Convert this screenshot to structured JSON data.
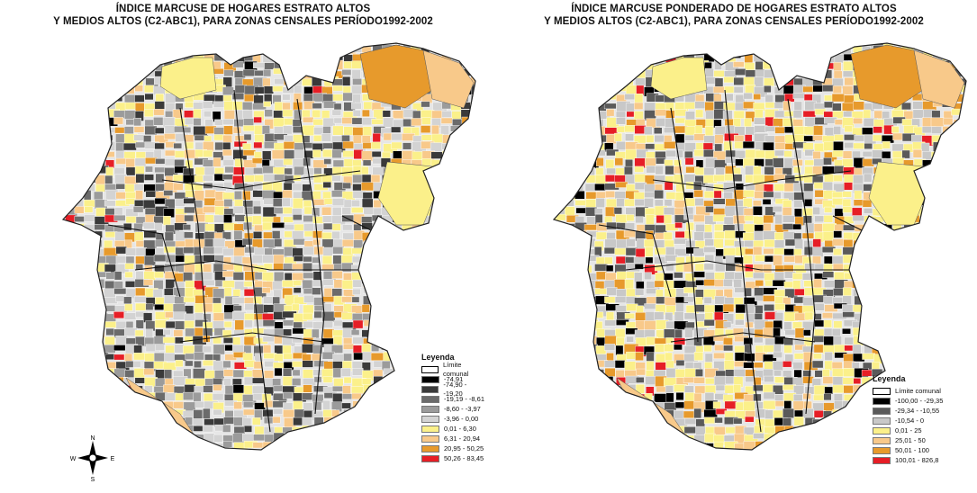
{
  "maps": [
    {
      "title_line1": "ÍNDICE MARCUSE DE HOGARES ESTRATO ALTOS",
      "title_line2": "Y MEDIOS ALTOS (C2-ABC1), PARA ZONAS CENSALES PERÍODO1992-2002",
      "legend": {
        "title": "Leyenda",
        "limit_label": "Límite comunal",
        "classes": [
          {
            "label": "-74,91",
            "color": "#000000"
          },
          {
            "label": "-74,90 - -19,20",
            "color": "#3a3a3a"
          },
          {
            "label": "-19,19 - -8,61",
            "color": "#6b6b6b"
          },
          {
            "label": "-8,60 - -3,97",
            "color": "#9b9b9b"
          },
          {
            "label": "-3,96 - 0,00",
            "color": "#d3d3d3"
          },
          {
            "label": "0,01 - 6,30",
            "color": "#fbf08a"
          },
          {
            "label": "6,31 - 20,94",
            "color": "#f8c98a"
          },
          {
            "label": "20,95 - 50,25",
            "color": "#e79a2c"
          },
          {
            "label": "50,26 - 83,45",
            "color": "#e61e26"
          }
        ]
      }
    },
    {
      "title_line1": "ÍNDICE MARCUSE PONDERADO DE HOGARES ESTRATO ALTOS",
      "title_line2": "Y MEDIOS ALTOS (C2-ABC1), PARA ZONAS CENSALES PERÍODO1992-2002",
      "legend": {
        "title": "Leyenda",
        "limit_label": "Límite comunal",
        "classes": [
          {
            "label": "-100,00 - -29,35",
            "color": "#000000"
          },
          {
            "label": "-29,34 - -10,55",
            "color": "#5a5a5a"
          },
          {
            "label": "-10,54 - 0",
            "color": "#c8c8c8"
          },
          {
            "label": "0,01 - 25",
            "color": "#fbf08a"
          },
          {
            "label": "25,01 - 50",
            "color": "#f8c98a"
          },
          {
            "label": "50,01 - 100",
            "color": "#e79a2c"
          },
          {
            "label": "100,01 - 826,8",
            "color": "#e61e26"
          }
        ]
      }
    }
  ],
  "compass": {
    "n": "N",
    "s": "S",
    "e": "E",
    "w": "W"
  }
}
